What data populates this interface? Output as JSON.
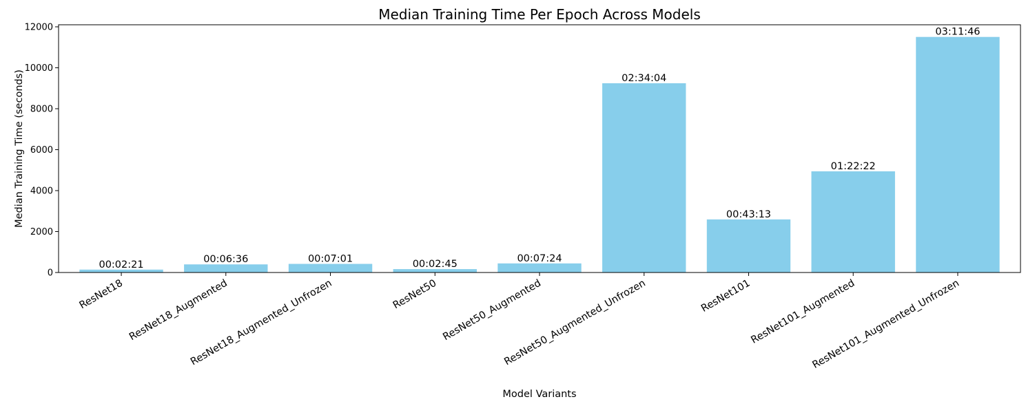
{
  "chart_data": {
    "type": "bar",
    "title": "Median Training Time Per Epoch Across Models",
    "xlabel": "Model Variants",
    "ylabel": "Median Training Time (seconds)",
    "ylim": [
      0,
      12100
    ],
    "yticks": [
      0,
      2000,
      4000,
      6000,
      8000,
      10000,
      12000
    ],
    "categories": [
      "ResNet18",
      "ResNet18_Augmented",
      "ResNet18_Augmented_Unfrozen",
      "ResNet50",
      "ResNet50_Augmented",
      "ResNet50_Augmented_Unfrozen",
      "ResNet101",
      "ResNet101_Augmented",
      "ResNet101_Augmented_Unfrozen"
    ],
    "values": [
      141,
      396,
      421,
      165,
      444,
      9244,
      2593,
      4942,
      11506
    ],
    "data_labels": [
      "00:02:21",
      "00:06:36",
      "00:07:01",
      "00:02:45",
      "00:07:24",
      "02:34:04",
      "00:43:13",
      "01:22:22",
      "03:11:46"
    ],
    "bar_color": "#87CEEB",
    "grid": false,
    "legend": "none"
  }
}
